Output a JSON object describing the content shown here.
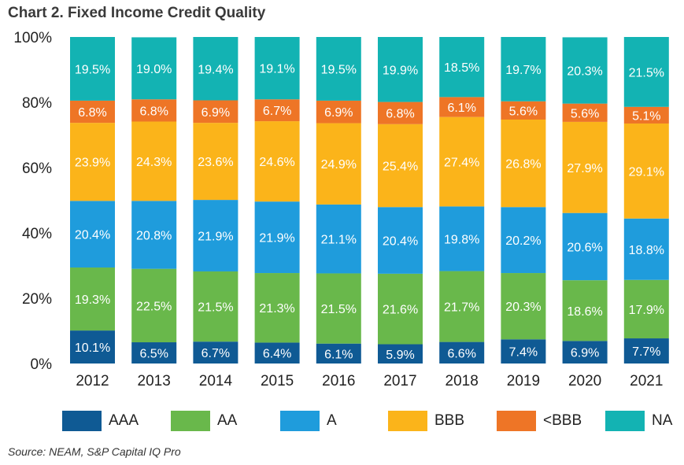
{
  "chart_data": {
    "type": "bar",
    "stacked": true,
    "title": "Chart 2. Fixed Income Credit Quality",
    "source": "Source: NEAM, S&P Capital IQ Pro",
    "categories": [
      "2012",
      "2013",
      "2014",
      "2015",
      "2016",
      "2017",
      "2018",
      "2019",
      "2020",
      "2021"
    ],
    "y_ticks": [
      "0%",
      "20%",
      "40%",
      "60%",
      "80%",
      "100%"
    ],
    "ylim": [
      0,
      100
    ],
    "xlabel": "",
    "ylabel": "",
    "grid": false,
    "legend_position": "bottom",
    "series": [
      {
        "name": "AAA",
        "color": "#0f5a94",
        "values": [
          10.1,
          6.5,
          6.7,
          6.4,
          6.1,
          5.9,
          6.6,
          7.4,
          6.9,
          7.7
        ],
        "labels": [
          "10.1%",
          "6.5%",
          "6.7%",
          "6.4%",
          "6.1%",
          "5.9%",
          "6.6%",
          "7.4%",
          "6.9%",
          "7.7%"
        ]
      },
      {
        "name": "AA",
        "color": "#69b84b",
        "values": [
          19.3,
          22.5,
          21.5,
          21.3,
          21.5,
          21.6,
          21.7,
          20.3,
          18.6,
          17.9
        ],
        "labels": [
          "19.3%",
          "22.5%",
          "21.5%",
          "21.3%",
          "21.5%",
          "21.6%",
          "21.7%",
          "20.3%",
          "18.6%",
          "17.9%"
        ]
      },
      {
        "name": "A",
        "color": "#1f9cdc",
        "values": [
          20.4,
          20.8,
          21.9,
          21.9,
          21.1,
          20.4,
          19.8,
          20.2,
          20.6,
          18.8
        ],
        "labels": [
          "20.4%",
          "20.8%",
          "21.9%",
          "21.9%",
          "21.1%",
          "20.4%",
          "19.8%",
          "20.2%",
          "20.6%",
          "18.8%"
        ]
      },
      {
        "name": "BBB",
        "color": "#fbb41a",
        "values": [
          23.9,
          24.3,
          23.6,
          24.6,
          24.9,
          25.4,
          27.4,
          26.8,
          27.9,
          29.1
        ],
        "labels": [
          "23.9%",
          "24.3%",
          "23.6%",
          "24.6%",
          "24.9%",
          "25.4%",
          "27.4%",
          "26.8%",
          "27.9%",
          "29.1%"
        ]
      },
      {
        "name": "<BBB",
        "color": "#ee7526",
        "values": [
          6.8,
          6.8,
          6.9,
          6.7,
          6.9,
          6.8,
          6.1,
          5.6,
          5.6,
          5.1
        ],
        "labels": [
          "6.8%",
          "6.8%",
          "6.9%",
          "6.7%",
          "6.9%",
          "6.8%",
          "6.1%",
          "5.6%",
          "5.6%",
          "5.1%"
        ]
      },
      {
        "name": "NA",
        "color": "#13b3b3",
        "values": [
          19.5,
          19.0,
          19.4,
          19.1,
          19.5,
          19.9,
          18.5,
          19.7,
          20.3,
          21.5
        ],
        "labels": [
          "19.5%",
          "19.0%",
          "19.4%",
          "19.1%",
          "19.5%",
          "19.9%",
          "18.5%",
          "19.7%",
          "20.3%",
          "21.5%"
        ]
      }
    ]
  }
}
